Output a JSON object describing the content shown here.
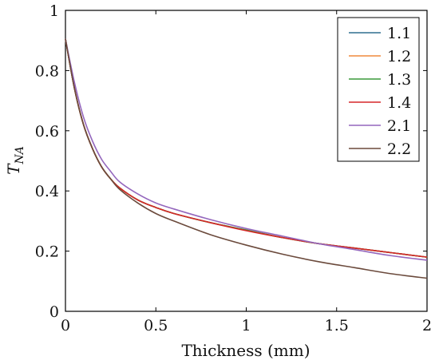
{
  "chart_data": {
    "type": "line",
    "title": "",
    "xlabel": "Thickness (mm)",
    "ylabel_main": "T",
    "ylabel_sub": "NA",
    "xlim": [
      0,
      2
    ],
    "ylim": [
      0,
      1
    ],
    "xticks": [
      "0",
      "0.5",
      "1",
      "1.5",
      "2"
    ],
    "yticks": [
      "0",
      "0.2",
      "0.4",
      "0.6",
      "0.8",
      "1"
    ],
    "grid": false,
    "legend_position": "top-right",
    "x": [
      0,
      0.05,
      0.1,
      0.15,
      0.2,
      0.25,
      0.3,
      0.4,
      0.5,
      0.6,
      0.8,
      1.0,
      1.2,
      1.4,
      1.6,
      1.8,
      2.0
    ],
    "series": [
      {
        "name": "1.1",
        "color": "#2f6f8f",
        "values": [
          0.905,
          0.74,
          0.62,
          0.54,
          0.48,
          0.44,
          0.41,
          0.37,
          0.345,
          0.325,
          0.295,
          0.27,
          0.245,
          0.225,
          0.21,
          0.195,
          0.18
        ]
      },
      {
        "name": "1.2",
        "color": "#f08a3c",
        "values": [
          0.905,
          0.74,
          0.62,
          0.54,
          0.48,
          0.44,
          0.41,
          0.37,
          0.345,
          0.325,
          0.295,
          0.27,
          0.245,
          0.225,
          0.21,
          0.195,
          0.18
        ]
      },
      {
        "name": "1.3",
        "color": "#3a9a3a",
        "values": [
          0.905,
          0.74,
          0.62,
          0.54,
          0.48,
          0.44,
          0.41,
          0.37,
          0.345,
          0.325,
          0.295,
          0.27,
          0.245,
          0.225,
          0.21,
          0.195,
          0.18
        ]
      },
      {
        "name": "1.4",
        "color": "#d62728",
        "values": [
          0.905,
          0.74,
          0.62,
          0.54,
          0.48,
          0.44,
          0.41,
          0.37,
          0.345,
          0.325,
          0.295,
          0.268,
          0.245,
          0.225,
          0.21,
          0.195,
          0.18
        ]
      },
      {
        "name": "2.1",
        "color": "#9467bd",
        "values": [
          0.905,
          0.76,
          0.645,
          0.565,
          0.505,
          0.465,
          0.43,
          0.39,
          0.36,
          0.34,
          0.305,
          0.275,
          0.25,
          0.225,
          0.205,
          0.185,
          0.17
        ]
      },
      {
        "name": "2.2",
        "color": "#6b4a3c",
        "values": [
          0.905,
          0.74,
          0.62,
          0.54,
          0.48,
          0.44,
          0.405,
          0.36,
          0.325,
          0.3,
          0.255,
          0.22,
          0.19,
          0.165,
          0.145,
          0.125,
          0.11
        ]
      }
    ]
  }
}
